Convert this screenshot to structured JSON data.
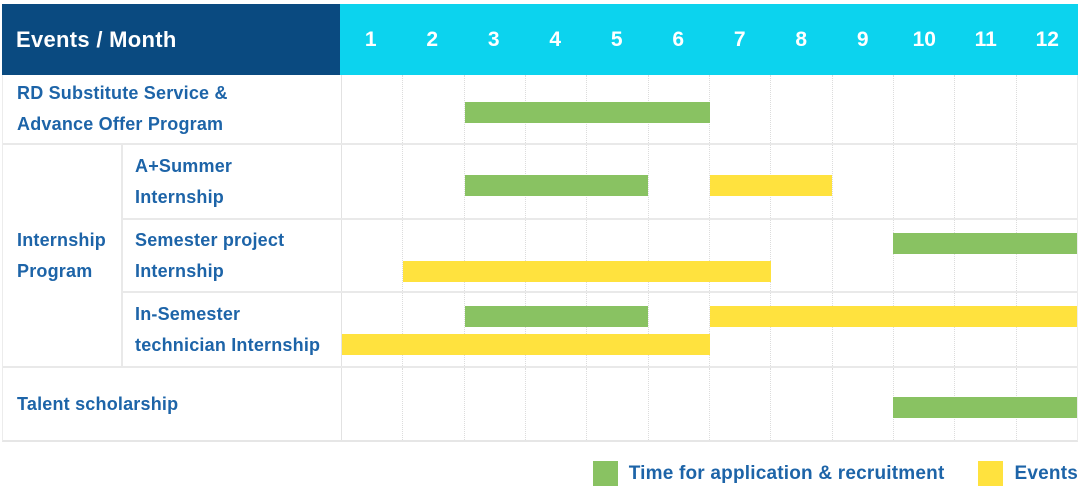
{
  "header": {
    "title": "Events / Month",
    "months": [
      "1",
      "2",
      "3",
      "4",
      "5",
      "6",
      "7",
      "8",
      "9",
      "10",
      "11",
      "12"
    ]
  },
  "group": {
    "label_lines": [
      "Internship",
      "Program"
    ]
  },
  "legend": [
    {
      "color": "green",
      "label": "Time for application & recruitment"
    },
    {
      "color": "yellow",
      "label": "Events"
    }
  ],
  "colors": {
    "navy": "#0a4a80",
    "cyan": "#0cd3ee",
    "green": "#89c262",
    "yellow": "#ffe23e",
    "label_blue": "#1d64a8"
  },
  "chart_data": {
    "type": "gantt",
    "title": "Events / Month",
    "x_categories": [
      "1",
      "2",
      "3",
      "4",
      "5",
      "6",
      "7",
      "8",
      "9",
      "10",
      "11",
      "12"
    ],
    "x_range": [
      1,
      12
    ],
    "grid": true,
    "legend_position": "bottom-right",
    "series_meta": {
      "green": "Time for application & recruitment",
      "yellow": "Events"
    },
    "rows": [
      {
        "label_lines": [
          "RD Substitute Service &",
          "Advance Offer Program"
        ],
        "group": null,
        "bars": [
          {
            "color": "green",
            "meaning": "Time for application & recruitment",
            "start_month": 3,
            "end_month": 6,
            "lane": "single"
          }
        ]
      },
      {
        "label_lines": [
          "A+Summer",
          "Internship"
        ],
        "group": "Internship Program",
        "bars": [
          {
            "color": "green",
            "meaning": "Time for application & recruitment",
            "start_month": 3,
            "end_month": 5,
            "lane": "single"
          },
          {
            "color": "yellow",
            "meaning": "Events",
            "start_month": 7,
            "end_month": 8,
            "lane": "single"
          }
        ]
      },
      {
        "label_lines": [
          "Semester project",
          "Internship"
        ],
        "group": "Internship Program",
        "bars": [
          {
            "color": "green",
            "meaning": "Time for application & recruitment",
            "start_month": 10,
            "end_month": 12,
            "lane": "upper"
          },
          {
            "color": "yellow",
            "meaning": "Events",
            "start_month": 2,
            "end_month": 7,
            "lane": "lower"
          }
        ]
      },
      {
        "label_lines": [
          "In-Semester",
          "technician Internship"
        ],
        "group": "Internship Program",
        "bars": [
          {
            "color": "green",
            "meaning": "Time for application & recruitment",
            "start_month": 3,
            "end_month": 5,
            "lane": "upper"
          },
          {
            "color": "yellow",
            "meaning": "Events",
            "start_month": 7,
            "end_month": 12,
            "lane": "upper"
          },
          {
            "color": "yellow",
            "meaning": "Events",
            "start_month": 1,
            "end_month": 6,
            "lane": "lower"
          }
        ]
      },
      {
        "label_lines": [
          "Talent scholarship"
        ],
        "group": null,
        "bars": [
          {
            "color": "green",
            "meaning": "Time for application & recruitment",
            "start_month": 10,
            "end_month": 12,
            "lane": "single"
          }
        ]
      }
    ]
  }
}
